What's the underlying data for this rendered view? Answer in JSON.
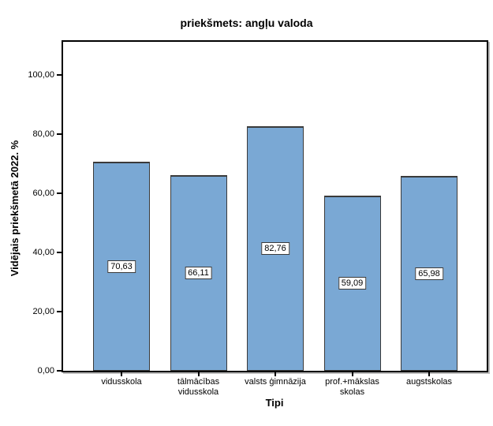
{
  "window": {
    "background_color": "#ffffff"
  },
  "chart_data": {
    "type": "bar",
    "title": "priekšmets: angļu valoda",
    "xlabel": "Tipi",
    "ylabel": "Vidējais priekšmetā 2022. %",
    "categories": [
      "vidusskola",
      "tālmācības\nvidusskola",
      "valsts ģimnāzija",
      "prof.+mākslas\nskolas",
      "augstskolas"
    ],
    "values": [
      70.63,
      66.11,
      82.76,
      59.09,
      65.98
    ],
    "value_labels": [
      "70,63",
      "66,11",
      "82,76",
      "59,09",
      "65,98"
    ],
    "yticks": [
      0,
      20,
      40,
      60,
      80,
      100
    ],
    "ytick_labels": [
      "0,00",
      "20,00",
      "40,00",
      "60,00",
      "80,00",
      "100,00"
    ],
    "ylim": [
      0,
      111
    ],
    "grid": false,
    "legend": "none",
    "bar_color": "#7aa8d4",
    "bar_border_color": "#3a3a3a",
    "frame_color": "#000000",
    "label_box_bg": "#ffffff"
  }
}
